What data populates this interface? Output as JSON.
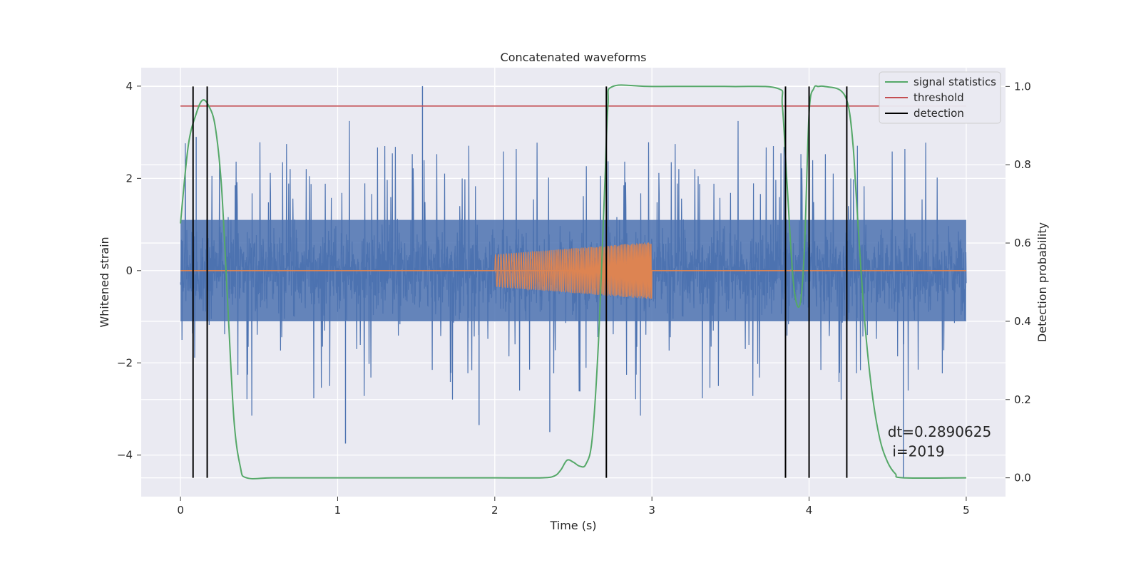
{
  "chart_data": {
    "type": "line",
    "title": "Concatenated waveforms",
    "xlabel": "Time (s)",
    "ylabel": "Whitened strain",
    "y2label": "Detection probability",
    "xlim": [
      -0.25,
      5.25
    ],
    "ylim": [
      -4.9,
      4.4
    ],
    "y2lim": [
      -0.048,
      1.048
    ],
    "xticks": [
      0,
      1,
      2,
      3,
      4,
      5
    ],
    "yticks": [
      -4,
      -2,
      0,
      2,
      4
    ],
    "y2ticks": [
      0.0,
      0.2,
      0.4,
      0.6,
      0.8,
      1.0
    ],
    "grid": true,
    "legend_position": "top-right",
    "colors": {
      "strain": "#4c72b0",
      "template": "#dd8452",
      "signal": "#55a868",
      "threshold": "#c44e52",
      "detection": "#000000",
      "background": "#eaeaf2",
      "grid": "#ffffff"
    },
    "series": [
      {
        "name": "signal statistics",
        "axis": "right",
        "x": [
          0.0,
          0.05,
          0.1,
          0.14,
          0.18,
          0.22,
          0.26,
          0.3,
          0.34,
          0.38,
          0.42,
          0.6,
          1.0,
          1.5,
          2.0,
          2.3,
          2.38,
          2.42,
          2.46,
          2.5,
          2.54,
          2.58,
          2.62,
          2.66,
          2.7,
          2.72,
          2.75,
          3.0,
          3.5,
          3.8,
          3.83,
          3.86,
          3.9,
          3.94,
          3.97,
          4.0,
          4.03,
          4.06,
          4.1,
          4.2,
          4.25,
          4.28,
          4.3,
          4.35,
          4.4,
          4.45,
          4.5,
          4.55,
          4.6,
          5.0
        ],
        "y": [
          0.65,
          0.85,
          0.93,
          0.965,
          0.95,
          0.9,
          0.75,
          0.45,
          0.15,
          0.03,
          0.0,
          0.0,
          0.0,
          0.0,
          0.0,
          0.0,
          0.005,
          0.02,
          0.045,
          0.04,
          0.03,
          0.035,
          0.1,
          0.35,
          0.75,
          0.95,
          1.0,
          1.0,
          1.0,
          0.995,
          0.95,
          0.75,
          0.5,
          0.44,
          0.58,
          0.93,
          0.995,
          1.0,
          1.0,
          0.99,
          0.95,
          0.85,
          0.72,
          0.42,
          0.22,
          0.1,
          0.04,
          0.01,
          0.0,
          0.0
        ]
      },
      {
        "name": "threshold",
        "axis": "right",
        "x": [
          0.0,
          5.0
        ],
        "y": [
          0.95,
          0.95
        ]
      },
      {
        "name": "detection",
        "axis": "right",
        "x": [
          0.08,
          0.17,
          2.71,
          3.85,
          4.0,
          4.24
        ]
      }
    ],
    "strain": {
      "axis": "left",
      "x_range": [
        0.0,
        5.0
      ],
      "core_amplitude": 1.1,
      "typical_peak": 2.6,
      "max_spike": 4.0,
      "min_spike": -4.5
    },
    "template": {
      "axis": "left",
      "x_range": [
        2.0,
        3.0
      ],
      "amplitude_start": 0.35,
      "amplitude_end": 0.62,
      "baseline_range": [
        0.0,
        5.0
      ]
    },
    "annotations": [
      {
        "text": "dt=0.2890625",
        "x": 4.5,
        "y": -3.6
      },
      {
        "text": "i=2019",
        "x": 4.53,
        "y": -4.03
      }
    ]
  }
}
